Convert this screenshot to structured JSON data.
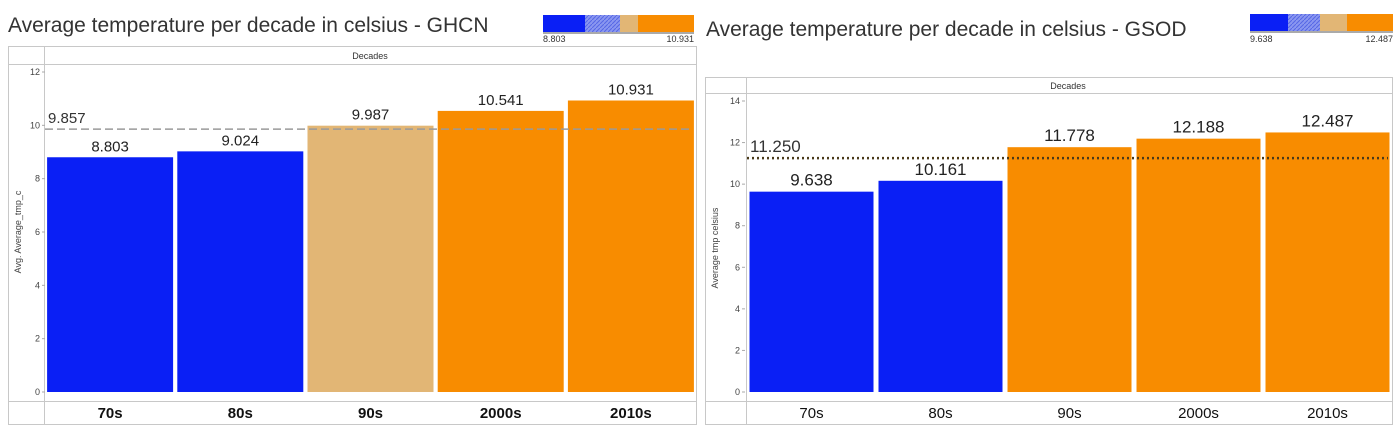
{
  "charts": [
    {
      "title": "Average temperature per decade in celsius - GHCN",
      "legend": {
        "min_label": "8.803",
        "max_label": "10.931"
      },
      "header_label": "Decades",
      "chart_data": {
        "type": "bar",
        "categories": [
          "70s",
          "80s",
          "90s",
          "2000s",
          "2010s"
        ],
        "values": [
          8.803,
          9.024,
          9.987,
          10.541,
          10.931
        ],
        "value_labels": [
          "8.803",
          "9.024",
          "9.987",
          "10.541",
          "10.931"
        ],
        "bar_colors": [
          "#0a1ff5",
          "#0a1ff5",
          "#e2b675",
          "#f88c00",
          "#f88c00"
        ],
        "xlabel": "Decades",
        "ylabel": "Avg. Average_tmp_c",
        "ylim": [
          0,
          12
        ],
        "yticks": [
          0,
          2,
          4,
          6,
          8,
          10,
          12
        ],
        "reference_line": {
          "value": 9.857,
          "label": "9.857",
          "style": "dashed",
          "color": "#9a9a9a"
        }
      }
    },
    {
      "title": "Average temperature per decade in celsius - GSOD",
      "legend": {
        "min_label": "9.638",
        "max_label": "12.487"
      },
      "header_label": "Decades",
      "chart_data": {
        "type": "bar",
        "categories": [
          "70s",
          "80s",
          "90s",
          "2000s",
          "2010s"
        ],
        "values": [
          9.638,
          10.161,
          11.778,
          12.188,
          12.487
        ],
        "value_labels": [
          "9.638",
          "10.161",
          "11.778",
          "12.188",
          "12.487"
        ],
        "bar_colors": [
          "#0a1ff5",
          "#0a1ff5",
          "#f88c00",
          "#f88c00",
          "#f88c00"
        ],
        "xlabel": "Decades",
        "ylabel": "Average tmp celsius",
        "ylim": [
          0,
          14
        ],
        "yticks": [
          0,
          2,
          4,
          6,
          8,
          10,
          12,
          14
        ],
        "reference_line": {
          "value": 11.25,
          "label": "11.250",
          "style": "dotted",
          "color": "#4a3a1a"
        }
      }
    }
  ],
  "colors": {
    "low": "#0a1ff5",
    "mid": "#e2b675",
    "high": "#f88c00",
    "hatch": "#7f8ff0"
  }
}
